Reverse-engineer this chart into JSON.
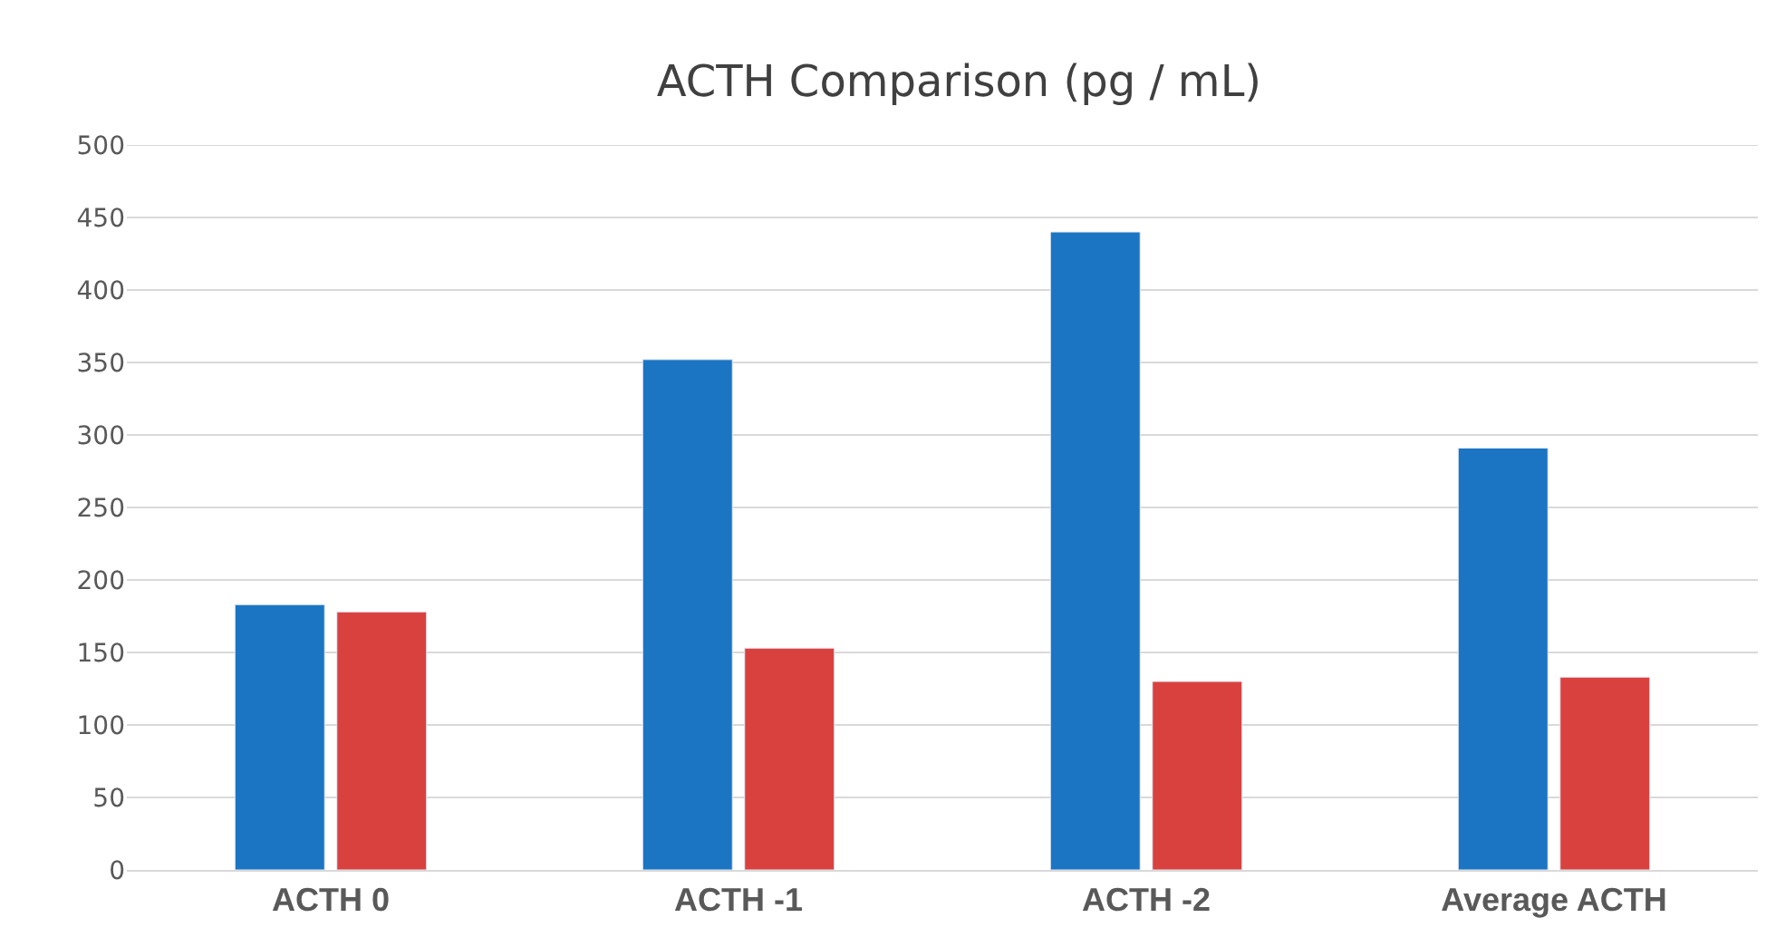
{
  "chart_data": {
    "type": "bar",
    "title": "ACTH Comparison (pg / mL)",
    "categories": [
      "ACTH 0",
      "ACTH -1",
      "ACTH -2",
      "Average ACTH"
    ],
    "series": [
      {
        "color": "#1b75c3",
        "values": [
          183,
          352,
          440,
          291
        ]
      },
      {
        "color": "#d9413f",
        "values": [
          178,
          153,
          130,
          133
        ]
      }
    ],
    "ylim": [
      0,
      500
    ],
    "yticks": [
      0,
      50,
      100,
      150,
      200,
      250,
      300,
      350,
      400,
      450,
      500
    ],
    "grid": "y"
  }
}
